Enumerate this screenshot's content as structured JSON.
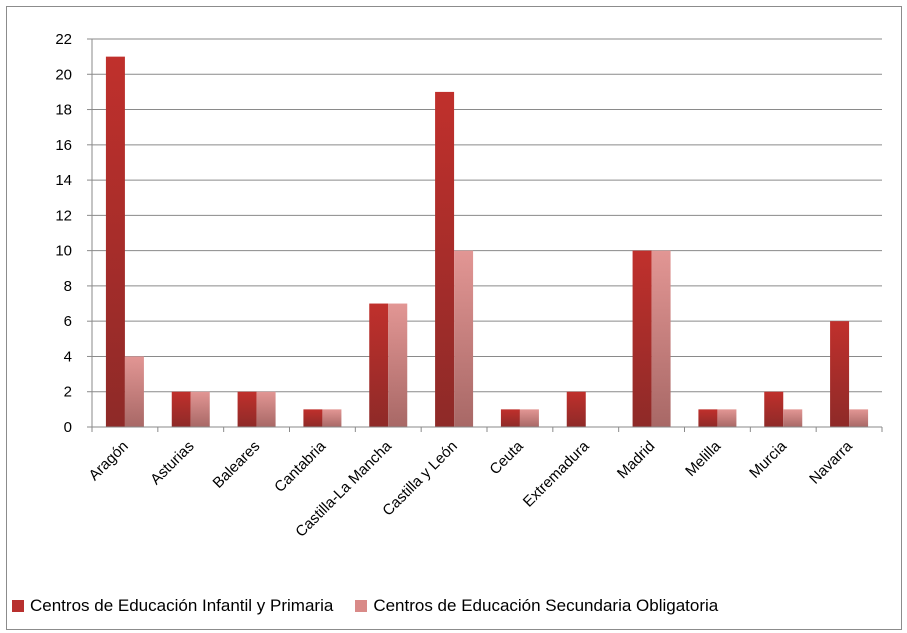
{
  "chart_data": {
    "type": "bar",
    "categories": [
      "Aragón",
      "Asturias",
      "Baleares",
      "Cantabria",
      "Castilla-La Mancha",
      "Castilla y León",
      "Ceuta",
      "Extremadura",
      "Madrid",
      "Melilla",
      "Murcia",
      "Navarra"
    ],
    "series": [
      {
        "name": "Centros de Educación Infantil y Primaria",
        "values": [
          21,
          2,
          2,
          1,
          7,
          19,
          1,
          2,
          10,
          1,
          2,
          6
        ],
        "color": "#b8302e"
      },
      {
        "name": "Centros de Educación Secundaria Obligatoria",
        "values": [
          4,
          2,
          2,
          1,
          7,
          10,
          1,
          0,
          10,
          1,
          1,
          1
        ],
        "color": "#d98a88"
      }
    ],
    "ylim": [
      0,
      22
    ],
    "yticks": [
      0,
      2,
      4,
      6,
      8,
      10,
      12,
      14,
      16,
      18,
      20,
      22
    ],
    "grid": true,
    "legend_position": "bottom",
    "title": "",
    "xlabel": "",
    "ylabel": ""
  }
}
